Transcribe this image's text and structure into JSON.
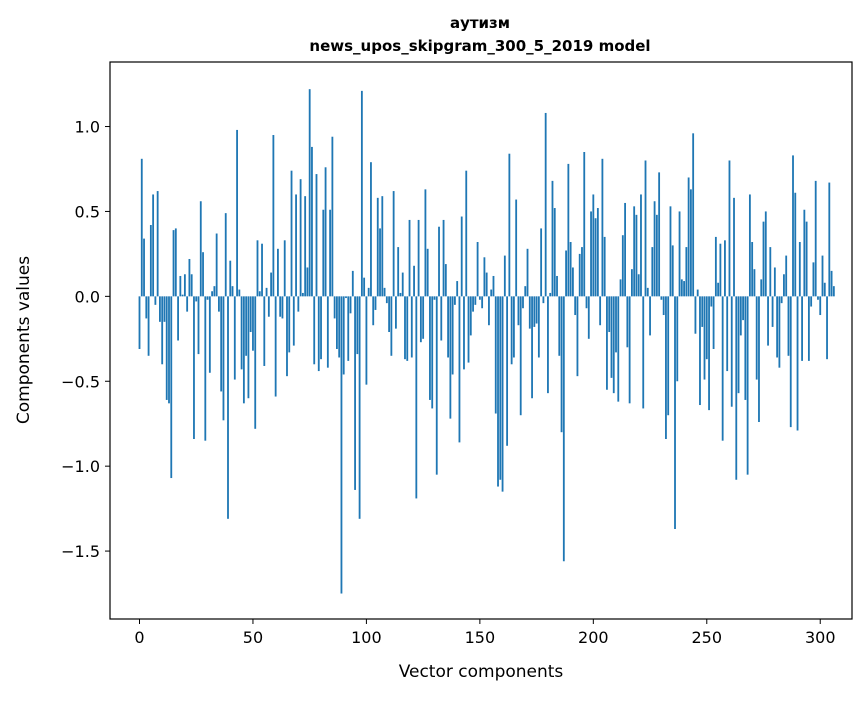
{
  "chart_data": {
    "type": "bar",
    "title": "аутизм",
    "subtitle": "news_upos_skipgram_300_5_2019 model",
    "xlabel": "Vector components",
    "ylabel": "Components values",
    "xlim": [
      -13,
      314
    ],
    "ylim": [
      -1.9,
      1.38
    ],
    "xticks": [
      0,
      50,
      100,
      150,
      200,
      250,
      300
    ],
    "yticks": [
      -1.5,
      -1.0,
      -0.5,
      0.0,
      0.5,
      1.0
    ],
    "xtick_labels": [
      "0",
      "50",
      "100",
      "150",
      "200",
      "250",
      "300"
    ],
    "ytick_labels": [
      "−1.5",
      "−1.0",
      "−0.5",
      "0.0",
      "0.5",
      "1.0"
    ],
    "bar_color": "#1f77b4",
    "grid": false,
    "legend": "none",
    "values": [
      -0.31,
      0.81,
      0.34,
      -0.13,
      -0.35,
      0.42,
      0.6,
      -0.05,
      0.62,
      -0.15,
      -0.4,
      -0.15,
      -0.61,
      -0.63,
      -1.07,
      0.39,
      0.4,
      -0.26,
      0.12,
      0.01,
      0.13,
      -0.09,
      0.22,
      0.13,
      -0.84,
      -0.03,
      -0.34,
      0.56,
      0.26,
      -0.85,
      -0.02,
      -0.45,
      0.03,
      0.06,
      0.37,
      -0.09,
      -0.56,
      -0.73,
      0.49,
      -1.31,
      0.21,
      0.06,
      -0.49,
      0.98,
      0.04,
      -0.43,
      -0.63,
      -0.35,
      -0.6,
      -0.21,
      -0.32,
      -0.78,
      0.33,
      0.03,
      0.31,
      -0.41,
      0.05,
      -0.12,
      0.14,
      0.95,
      -0.59,
      0.28,
      -0.12,
      -0.13,
      0.33,
      -0.47,
      -0.33,
      0.74,
      -0.29,
      0.6,
      -0.09,
      0.69,
      0.02,
      0.59,
      0.17,
      1.22,
      0.88,
      -0.4,
      0.72,
      -0.44,
      -0.37,
      0.51,
      0.76,
      -0.42,
      0.51,
      0.94,
      -0.13,
      -0.31,
      -0.36,
      -1.75,
      -0.46,
      -0.01,
      -0.38,
      -0.1,
      0.15,
      -1.14,
      -0.34,
      -1.31,
      1.21,
      0.11,
      -0.52,
      0.05,
      0.79,
      -0.17,
      -0.08,
      0.58,
      0.4,
      0.59,
      0.05,
      -0.04,
      -0.21,
      -0.35,
      0.62,
      -0.19,
      0.29,
      0.02,
      0.14,
      -0.37,
      -0.38,
      0.45,
      -0.36,
      0.18,
      -1.19,
      0.45,
      -0.27,
      -0.25,
      0.63,
      0.28,
      -0.61,
      -0.66,
      -0.02,
      -1.05,
      0.41,
      -0.26,
      0.45,
      0.19,
      -0.36,
      -0.72,
      -0.46,
      -0.05,
      0.09,
      -0.86,
      0.47,
      -0.43,
      0.74,
      -0.39,
      -0.23,
      -0.09,
      -0.05,
      0.32,
      -0.02,
      -0.07,
      0.23,
      0.14,
      -0.17,
      0.04,
      0.12,
      -0.69,
      -1.12,
      -1.08,
      -1.15,
      0.24,
      -0.88,
      0.84,
      -0.4,
      -0.36,
      0.57,
      -0.17,
      -0.7,
      -0.07,
      0.06,
      0.28,
      -0.19,
      -0.6,
      -0.18,
      -0.16,
      -0.36,
      0.4,
      -0.04,
      1.08,
      -0.57,
      0.02,
      0.68,
      0.52,
      0.12,
      -0.35,
      -0.8,
      -1.56,
      0.27,
      0.78,
      0.32,
      0.17,
      -0.11,
      -0.47,
      0.25,
      0.29,
      0.85,
      -0.07,
      -0.25,
      0.5,
      0.6,
      0.46,
      0.52,
      -0.17,
      0.81,
      0.35,
      -0.55,
      -0.21,
      -0.48,
      -0.57,
      -0.33,
      -0.62,
      0.1,
      0.36,
      0.55,
      -0.3,
      -0.63,
      0.16,
      0.53,
      0.48,
      0.13,
      0.6,
      -0.66,
      0.8,
      0.05,
      -0.23,
      0.29,
      0.56,
      0.48,
      0.73,
      -0.02,
      -0.11,
      -0.84,
      -0.7,
      0.53,
      0.3,
      -1.37,
      -0.5,
      0.5,
      0.1,
      0.09,
      0.29,
      0.7,
      0.63,
      0.96,
      -0.22,
      0.04,
      -0.64,
      -0.18,
      -0.49,
      -0.37,
      -0.67,
      -0.06,
      -0.31,
      0.35,
      0.08,
      0.31,
      -0.85,
      0.33,
      -0.44,
      0.8,
      -0.65,
      0.58,
      -1.08,
      -0.57,
      -0.23,
      -0.14,
      -0.61,
      -1.05,
      0.6,
      0.32,
      0.16,
      -0.49,
      -0.74,
      0.1,
      0.44,
      0.5,
      -0.29,
      0.29,
      -0.18,
      0.17,
      -0.36,
      -0.42,
      -0.04,
      0.13,
      0.24,
      -0.35,
      -0.77,
      0.83,
      0.61,
      -0.79,
      0.32,
      -0.38,
      0.51,
      0.44,
      -0.38,
      -0.06,
      0.2,
      0.68,
      -0.02,
      -0.11,
      0.24,
      0.08,
      -0.37,
      0.67,
      0.15,
      0.06
    ]
  }
}
